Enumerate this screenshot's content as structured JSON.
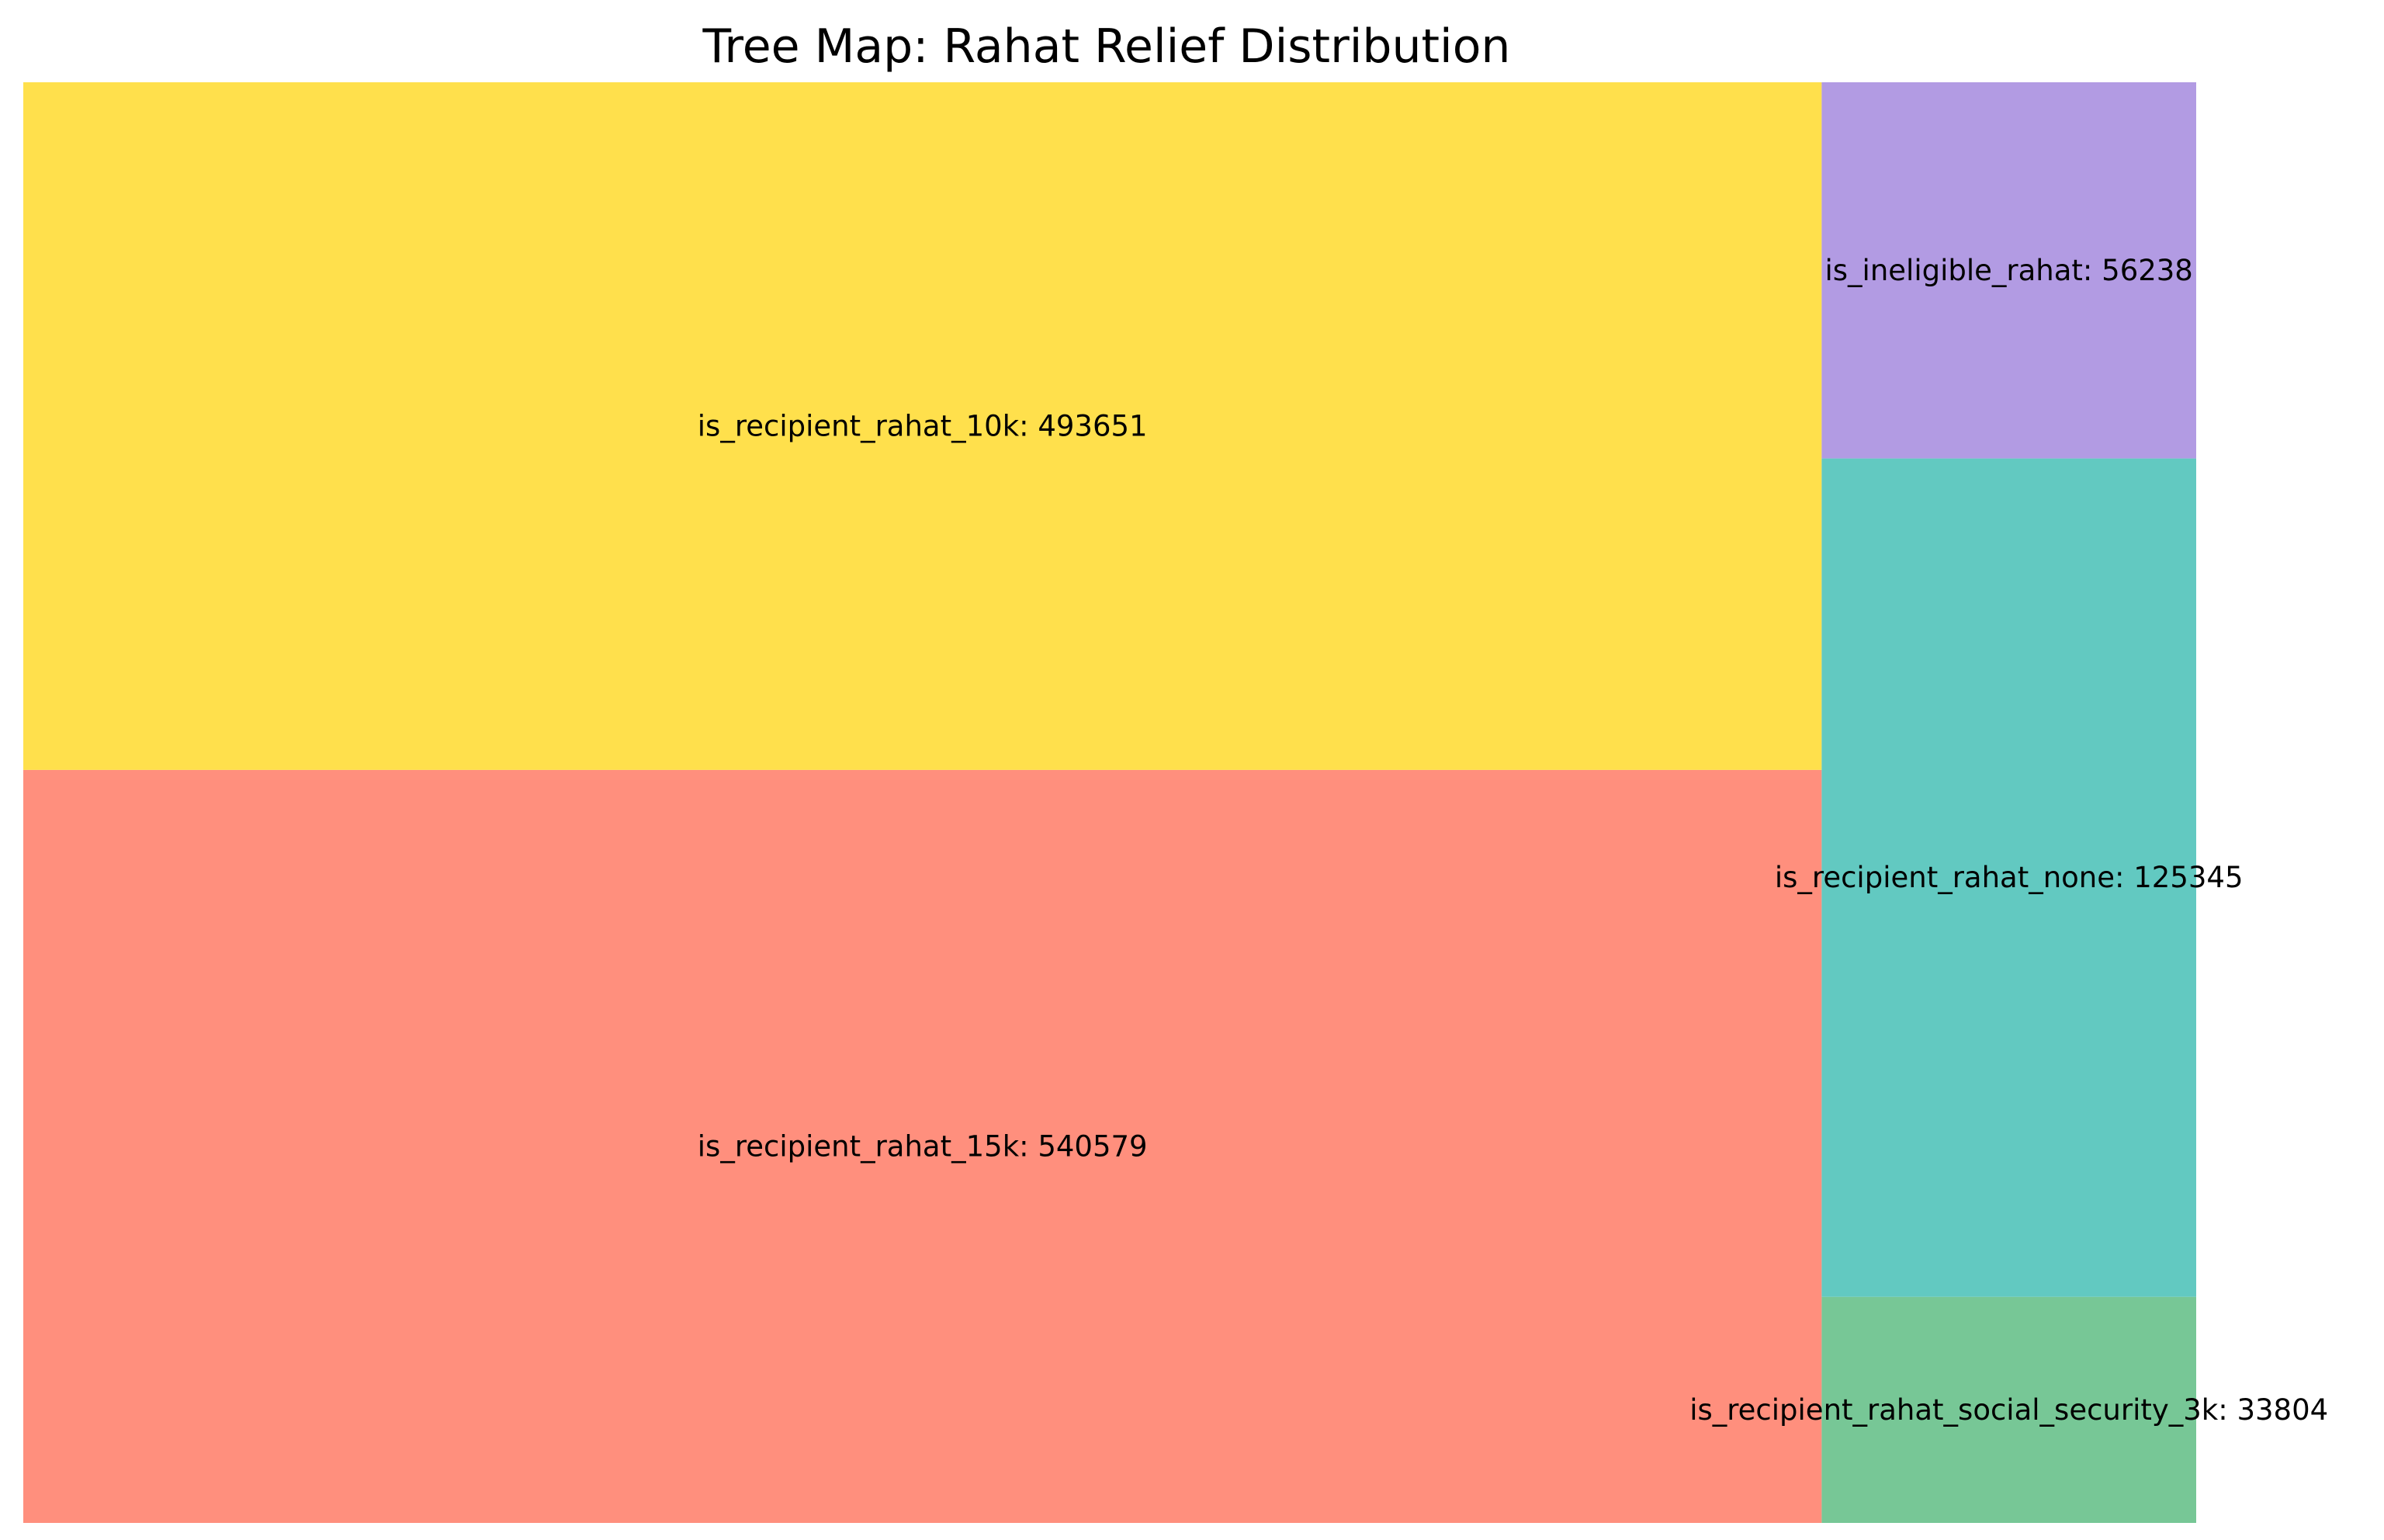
{
  "chart_data": {
    "type": "treemap",
    "title": "Tree Map: Rahat Relief Distribution",
    "items": [
      {
        "label": "is_recipient_rahat_15k",
        "value": 540579,
        "color": "#FF8F7D"
      },
      {
        "label": "is_recipient_rahat_10k",
        "value": 493651,
        "color": "#FFE04C"
      },
      {
        "label": "is_recipient_rahat_social_security_3k",
        "value": 33804,
        "color": "#77C796"
      },
      {
        "label": "is_recipient_rahat_none",
        "value": 125345,
        "color": "#62C9C1"
      },
      {
        "label": "is_ineligible_rahat",
        "value": 56238,
        "color": "#B29BE3"
      }
    ]
  }
}
